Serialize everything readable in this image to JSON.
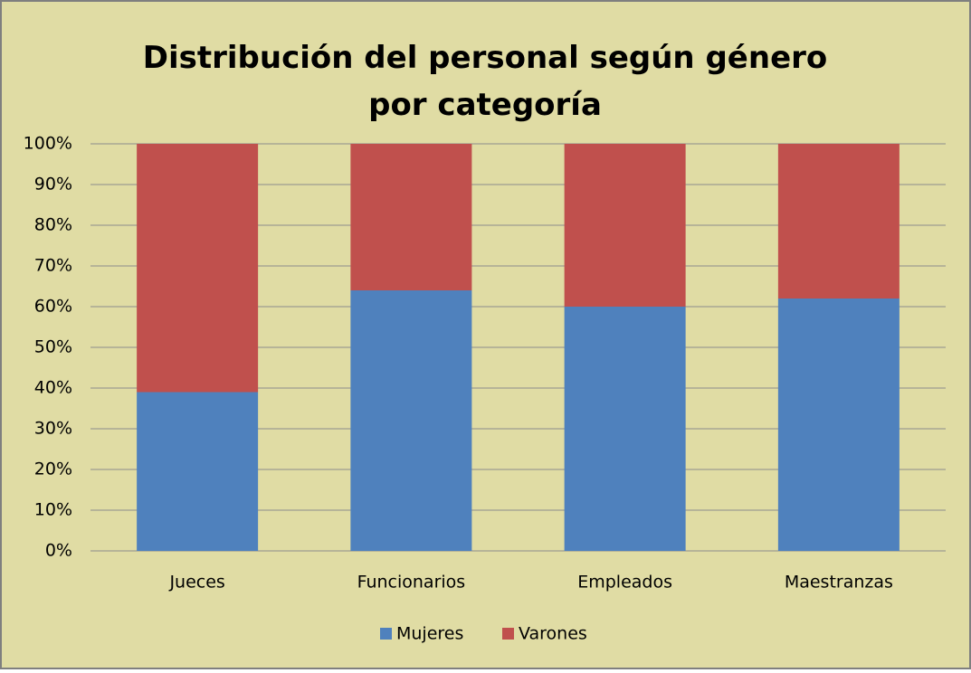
{
  "chart_data": {
    "type": "stacked_bar",
    "title": "Distribución del personal según género por categoría",
    "categories": [
      "Jueces",
      "Funcionarios",
      "Empleados",
      "Maestranzas"
    ],
    "series": [
      {
        "name": "Mujeres",
        "color": "#4f81bd",
        "values": [
          39,
          64,
          60,
          62
        ]
      },
      {
        "name": "Varones",
        "color": "#c0504d",
        "values": [
          61,
          36,
          40,
          38
        ]
      }
    ],
    "ylim": [
      0,
      100
    ],
    "yticks": [
      {
        "value": 0,
        "label": "0%"
      },
      {
        "value": 10,
        "label": "10%"
      },
      {
        "value": 20,
        "label": "20%"
      },
      {
        "value": 30,
        "label": "30%"
      },
      {
        "value": 40,
        "label": "40%"
      },
      {
        "value": 50,
        "label": "50%"
      },
      {
        "value": 60,
        "label": "60%"
      },
      {
        "value": 70,
        "label": "70%"
      },
      {
        "value": 80,
        "label": "80%"
      },
      {
        "value": 90,
        "label": "90%"
      },
      {
        "value": 100,
        "label": "100%"
      }
    ],
    "grid": true,
    "legend": "bottom"
  }
}
